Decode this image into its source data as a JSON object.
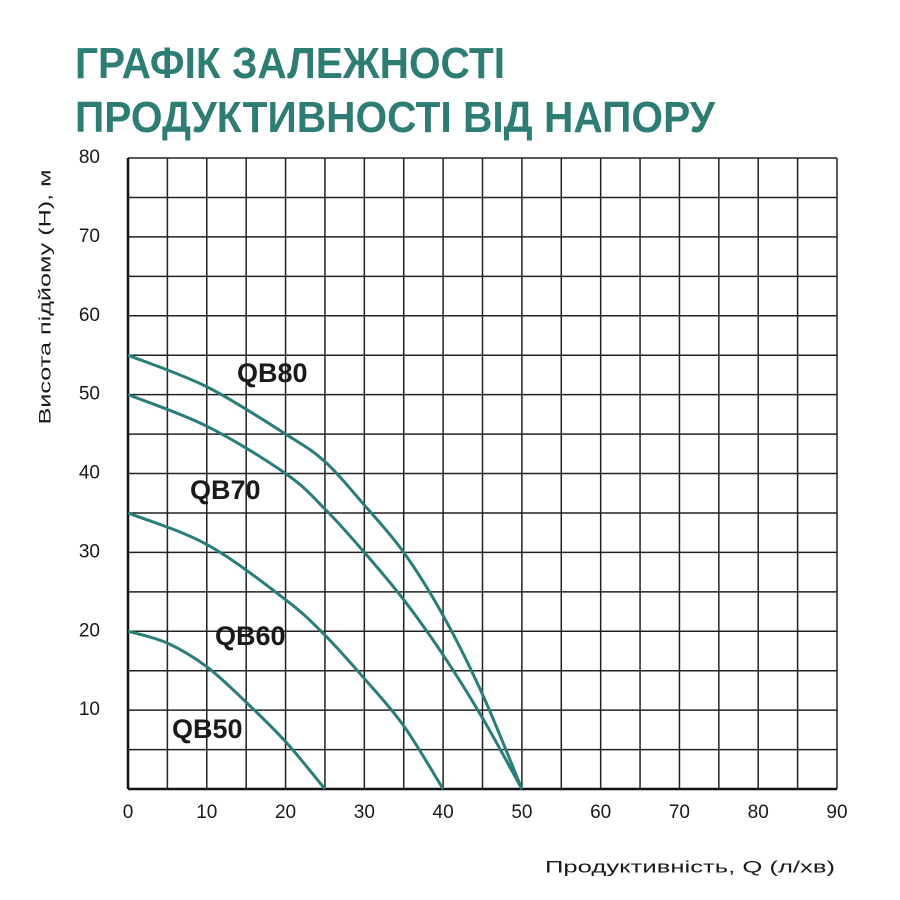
{
  "chart_data": {
    "type": "line",
    "title": [
      "ГРАФІК ЗАЛЕЖНОСТІ",
      "ПРОДУКТИВНОСТІ ВІД НАПОРУ"
    ],
    "x_label": "Продуктивність, Q (л/хв)",
    "y_label": "Висота підйому (Н), м",
    "xlim": [
      0,
      90
    ],
    "xticks": [
      0,
      10,
      20,
      30,
      40,
      50,
      60,
      70,
      80,
      90
    ],
    "ylim": [
      0,
      80
    ],
    "yticks": [
      10,
      20,
      30,
      40,
      50,
      60,
      70,
      80
    ],
    "grid": true,
    "series": [
      {
        "name": "QB80",
        "color": "#2a7d78",
        "x": [
          0,
          10,
          20,
          25,
          30,
          35,
          40,
          45,
          50
        ],
        "values": [
          55,
          51,
          45,
          41.5,
          36,
          30,
          22,
          12,
          0
        ]
      },
      {
        "name": "QB70",
        "color": "#2a7d78",
        "x": [
          0,
          10,
          20,
          25,
          30,
          35,
          40,
          45,
          50
        ],
        "values": [
          50,
          46,
          40,
          35.5,
          30,
          24,
          17,
          9,
          0
        ]
      },
      {
        "name": "QB60",
        "color": "#2a7d78",
        "x": [
          0,
          10,
          20,
          25,
          30,
          35,
          40
        ],
        "values": [
          35,
          31,
          24,
          19.5,
          14,
          8,
          0
        ]
      },
      {
        "name": "QB50",
        "color": "#2a7d78",
        "x": [
          0,
          5,
          10,
          15,
          20,
          25
        ],
        "values": [
          20,
          18.5,
          15.5,
          11,
          6,
          0
        ]
      }
    ]
  }
}
